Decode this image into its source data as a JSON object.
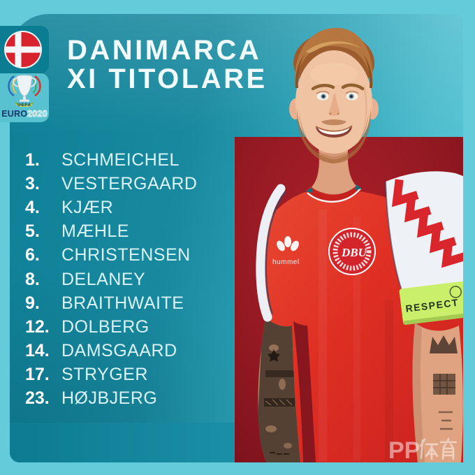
{
  "header": {
    "title_line1": "DANIMARCA",
    "title_line2": "XI TITOLARE"
  },
  "badges": {
    "flag_country": "Denmark",
    "euro_logo": {
      "uefa": "UEFA",
      "euro": "EURO",
      "year": "2020"
    }
  },
  "lineup": {
    "players": [
      {
        "number": "1.",
        "name": "SCHMEICHEL"
      },
      {
        "number": "3.",
        "name": "VESTERGAARD"
      },
      {
        "number": "4.",
        "name": "KJÆR"
      },
      {
        "number": "5.",
        "name": "MÆHLE"
      },
      {
        "number": "6.",
        "name": "CHRISTENSEN"
      },
      {
        "number": "8.",
        "name": "DELANEY"
      },
      {
        "number": "9.",
        "name": "BRAITHWAITE"
      },
      {
        "number": "12.",
        "name": "DOLBERG"
      },
      {
        "number": "14.",
        "name": "DAMSGAARD"
      },
      {
        "number": "17.",
        "name": "STRYGER"
      },
      {
        "number": "23.",
        "name": "HØJBJERG"
      }
    ]
  },
  "photo": {
    "crest_label": "DBU",
    "brand_label": "hummel",
    "armband_label": "RESPECT",
    "watermark_full": "PP体育",
    "watermark_pp": "PP"
  },
  "colors": {
    "frame": "#63cbda",
    "panel_dark": "#0d8097",
    "panel_light": "#5fcbda",
    "bottom_band": "#0d7b92",
    "flag_tile": "#0b7d93",
    "euro_tile": "#58c2d1",
    "flag_red": "#d6232e",
    "photo_background_red": "#9a1b24",
    "jersey_red": "#e03226",
    "armband_green": "#c9ef6b",
    "title_text": "#f0fcfe",
    "number_text": "#ffffff",
    "name_text": "#d9f3f7"
  }
}
